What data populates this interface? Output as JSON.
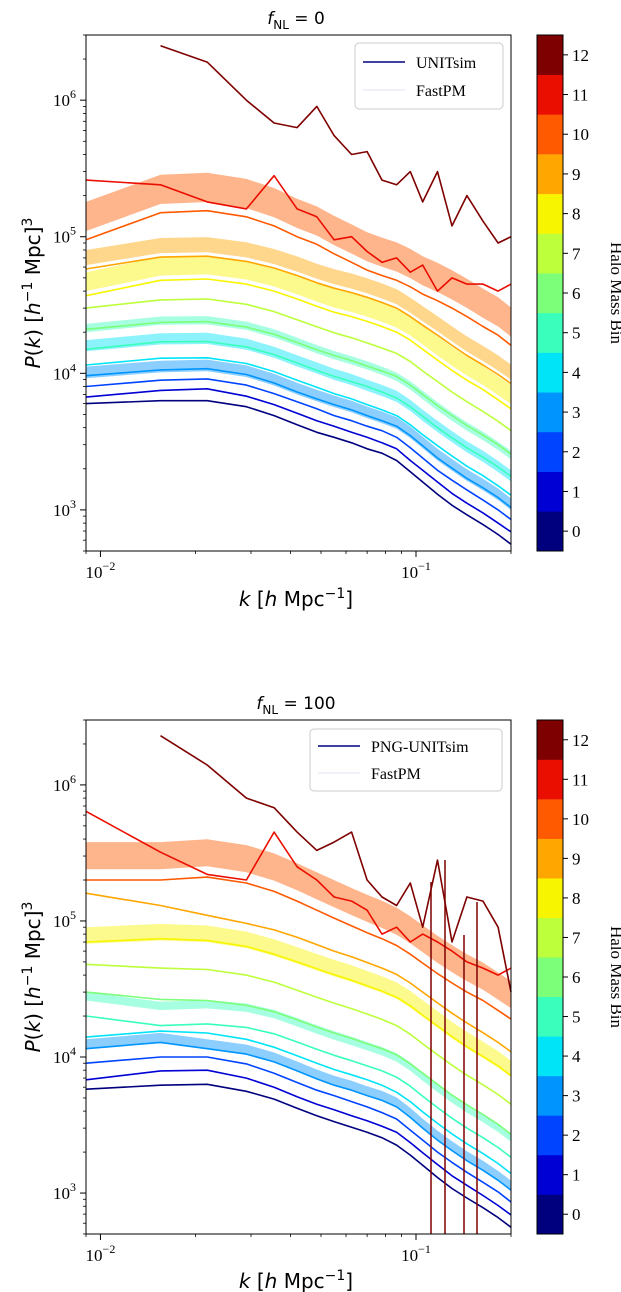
{
  "colorbar": {
    "label": "Halo Mass Bin",
    "ticks": [
      "0",
      "1",
      "2",
      "3",
      "4",
      "5",
      "6",
      "7",
      "8",
      "9",
      "10",
      "11",
      "12"
    ],
    "colors": [
      "#00007f",
      "#0000d4",
      "#0044ff",
      "#0094ff",
      "#00e4f8",
      "#3affbc",
      "#7cff79",
      "#bcff3a",
      "#f8f500",
      "#ffa600",
      "#ff5a00",
      "#ea0e00",
      "#7f0000"
    ]
  },
  "chart_data": [
    {
      "type": "line",
      "title": "f_NL = 0",
      "xlabel": "k [h Mpc^-1]",
      "ylabel": "P(k) [h^-1 Mpc]^3",
      "xscale": "log",
      "yscale": "log",
      "xlim": [
        0.009,
        0.2
      ],
      "ylim": [
        500,
        3000000
      ],
      "xticks": [
        "10^-2",
        "10^-1"
      ],
      "yticks": [
        "10^3",
        "10^4",
        "10^5",
        "10^6"
      ],
      "legend": {
        "position": "top-right",
        "entries": [
          "UNITsim",
          "FastPM"
        ]
      },
      "x": [
        0.009,
        0.0155,
        0.0218,
        0.029,
        0.0355,
        0.042,
        0.0485,
        0.055,
        0.0625,
        0.07,
        0.078,
        0.0868,
        0.0959,
        0.105,
        0.117,
        0.13,
        0.145,
        0.163,
        0.182,
        0.2
      ],
      "series": [
        {
          "bin": 0,
          "values": [
            6000,
            6300,
            6300,
            5700,
            4900,
            4200,
            3700,
            3400,
            3100,
            2800,
            2600,
            2300,
            1900,
            1600,
            1300,
            1080,
            920,
            780,
            660,
            560
          ]
        },
        {
          "bin": 1,
          "values": [
            6700,
            7500,
            7700,
            6800,
            5900,
            5100,
            4500,
            4100,
            3700,
            3400,
            3100,
            2800,
            2300,
            1950,
            1600,
            1320,
            1120,
            950,
            800,
            690
          ]
        },
        {
          "bin": 2,
          "values": [
            8000,
            8900,
            9100,
            8200,
            7100,
            6200,
            5500,
            4900,
            4500,
            4100,
            3800,
            3400,
            2850,
            2400,
            1950,
            1650,
            1400,
            1180,
            1000,
            850
          ]
        },
        {
          "bin": 3,
          "values": [
            9600,
            10600,
            10800,
            9800,
            8500,
            7300,
            6500,
            5900,
            5400,
            4900,
            4500,
            4100,
            3500,
            2950,
            2400,
            2020,
            1700,
            1450,
            1230,
            1040
          ]
        },
        {
          "bin": 4,
          "values": [
            11500,
            12900,
            13000,
            11800,
            10300,
            8900,
            7900,
            7100,
            6500,
            5900,
            5400,
            4900,
            4200,
            3550,
            2950,
            2480,
            2090,
            1780,
            1500,
            1280
          ]
        },
        {
          "bin": 5,
          "values": [
            15000,
            17000,
            17100,
            15600,
            13700,
            11900,
            10500,
            9500,
            8700,
            8000,
            7300,
            6600,
            5700,
            4850,
            4000,
            3370,
            2850,
            2430,
            2060,
            1760
          ]
        },
        {
          "bin": 6,
          "values": [
            21000,
            23600,
            23900,
            21800,
            19300,
            16800,
            14900,
            13500,
            12400,
            11300,
            10400,
            9500,
            8200,
            7000,
            5800,
            4900,
            4150,
            3530,
            3000,
            2560
          ]
        },
        {
          "bin": 7,
          "values": [
            30000,
            34500,
            35000,
            32000,
            28300,
            24700,
            21900,
            19800,
            18200,
            16700,
            15300,
            14000,
            12200,
            10400,
            8700,
            7300,
            6200,
            5250,
            4450,
            3800
          ]
        },
        {
          "bin": 8,
          "values": [
            37000,
            48000,
            49000,
            45000,
            40000,
            35000,
            31000,
            28000,
            26000,
            24000,
            22000,
            20000,
            17500,
            15000,
            12500,
            10500,
            8900,
            7600,
            6400,
            5500
          ]
        },
        {
          "bin": 9,
          "values": [
            58000,
            71000,
            72000,
            66000,
            59000,
            52000,
            46000,
            42000,
            39000,
            36000,
            33000,
            30000,
            26000,
            22500,
            19000,
            16000,
            13500,
            11500,
            9800,
            8400
          ]
        },
        {
          "bin": 10,
          "values": [
            95000,
            150000,
            155000,
            140000,
            120000,
            100000,
            88000,
            75000,
            65000,
            57000,
            52000,
            48000,
            43000,
            38000,
            34000,
            30000,
            26000,
            22000,
            19000,
            16000
          ]
        },
        {
          "bin": 11,
          "values": [
            260000,
            240000,
            180000,
            160000,
            280000,
            160000,
            140000,
            95000,
            100000,
            78000,
            65000,
            70000,
            55000,
            62000,
            40000,
            50000,
            45000,
            45000,
            40000,
            45000
          ]
        },
        {
          "bin": 12,
          "values": [
            null,
            2500000,
            1900000,
            1000000,
            680000,
            630000,
            900000,
            550000,
            400000,
            420000,
            260000,
            240000,
            300000,
            180000,
            300000,
            120000,
            200000,
            130000,
            90000,
            100000
          ]
        }
      ],
      "fastpm_bands": [
        {
          "bin": 3,
          "lo": 9200,
          "hi": 11200
        },
        {
          "bin": 4,
          "lo": 14500,
          "hi": 17500
        },
        {
          "bin": 5,
          "lo": 20000,
          "hi": 23000
        },
        {
          "bin": 8,
          "lo": 40000,
          "hi": 55000
        },
        {
          "bin": 9,
          "lo": 62000,
          "hi": 80000
        },
        {
          "bin": 10,
          "lo": 110000,
          "hi": 180000
        }
      ]
    },
    {
      "type": "line",
      "title": "f_NL = 100",
      "xlabel": "k [h Mpc^-1]",
      "ylabel": "P(k) [h^-1 Mpc]^3",
      "xscale": "log",
      "yscale": "log",
      "xlim": [
        0.009,
        0.2
      ],
      "ylim": [
        500,
        3000000
      ],
      "xticks": [
        "10^-2",
        "10^-1"
      ],
      "yticks": [
        "10^3",
        "10^4",
        "10^5",
        "10^6"
      ],
      "legend": {
        "position": "top-right",
        "entries": [
          "PNG-UNITsim",
          "FastPM"
        ]
      },
      "x": [
        0.009,
        0.0155,
        0.0218,
        0.029,
        0.0355,
        0.042,
        0.0485,
        0.055,
        0.0625,
        0.07,
        0.078,
        0.0868,
        0.0959,
        0.105,
        0.117,
        0.13,
        0.145,
        0.163,
        0.182,
        0.2
      ],
      "series": [
        {
          "bin": 0,
          "values": [
            5800,
            6200,
            6300,
            5600,
            4900,
            4200,
            3700,
            3350,
            3050,
            2800,
            2550,
            2250,
            1900,
            1600,
            1300,
            1080,
            920,
            780,
            660,
            560
          ]
        },
        {
          "bin": 1,
          "values": [
            6800,
            7900,
            8000,
            7000,
            6000,
            5100,
            4500,
            4100,
            3700,
            3400,
            3100,
            2800,
            2350,
            1980,
            1620,
            1340,
            1140,
            960,
            810,
            690
          ]
        },
        {
          "bin": 2,
          "values": [
            9000,
            10000,
            10000,
            8900,
            7600,
            6500,
            5700,
            5200,
            4700,
            4300,
            3900,
            3500,
            2900,
            2450,
            2000,
            1680,
            1420,
            1200,
            1020,
            860
          ]
        },
        {
          "bin": 3,
          "values": [
            11500,
            12800,
            11500,
            10500,
            9200,
            7900,
            6900,
            6200,
            5700,
            5200,
            4800,
            4300,
            3600,
            3000,
            2450,
            2050,
            1730,
            1470,
            1240,
            1050
          ]
        },
        {
          "bin": 4,
          "values": [
            14000,
            15500,
            15000,
            13500,
            11800,
            10200,
            9000,
            8100,
            7400,
            6800,
            6200,
            5500,
            4700,
            3950,
            3250,
            2720,
            2300,
            1950,
            1650,
            1390
          ]
        },
        {
          "bin": 5,
          "values": [
            20000,
            17000,
            17500,
            16500,
            14800,
            12900,
            11400,
            10300,
            9400,
            8600,
            7900,
            7100,
            6100,
            5150,
            4250,
            3550,
            3000,
            2550,
            2160,
            1830
          ]
        },
        {
          "bin": 6,
          "values": [
            30000,
            26500,
            26000,
            24000,
            21500,
            18800,
            16600,
            15000,
            13700,
            12500,
            11500,
            10400,
            8900,
            7600,
            6300,
            5250,
            4450,
            3780,
            3200,
            2700
          ]
        },
        {
          "bin": 7,
          "values": [
            48000,
            45000,
            44000,
            40000,
            35500,
            31000,
            27500,
            24900,
            22700,
            20700,
            18900,
            17000,
            14700,
            12500,
            10400,
            8700,
            7350,
            6250,
            5300,
            4500
          ]
        },
        {
          "bin": 8,
          "values": [
            70000,
            74000,
            72000,
            65000,
            57000,
            50000,
            44500,
            40300,
            36700,
            33400,
            30500,
            27500,
            23800,
            20300,
            16900,
            14100,
            11900,
            10100,
            8600,
            7300
          ]
        },
        {
          "bin": 9,
          "values": [
            160000,
            130000,
            110000,
            96000,
            86000,
            76000,
            67000,
            60000,
            54500,
            49500,
            45000,
            40500,
            35000,
            30000,
            25000,
            21000,
            17800,
            15100,
            12800,
            10900
          ]
        },
        {
          "bin": 10,
          "values": [
            200000,
            200000,
            210000,
            190000,
            165000,
            140000,
            120000,
            105000,
            92000,
            82000,
            74000,
            66000,
            57000,
            49000,
            41000,
            35000,
            30000,
            26000,
            22000,
            19000
          ]
        },
        {
          "bin": 11,
          "values": [
            640000,
            320000,
            220000,
            200000,
            450000,
            250000,
            200000,
            150000,
            140000,
            120000,
            80000,
            90000,
            70000,
            80000,
            70000,
            60000,
            50000,
            45000,
            40000,
            45000
          ]
        },
        {
          "bin": 12,
          "values": [
            null,
            2300000,
            1400000,
            800000,
            680000,
            450000,
            330000,
            380000,
            450000,
            200000,
            150000,
            130000,
            190000,
            90000,
            280000,
            70000,
            150000,
            140000,
            90000,
            30000
          ]
        }
      ],
      "fastpm_bands": [
        {
          "bin": 3,
          "lo": 11500,
          "hi": 13500
        },
        {
          "bin": 5,
          "lo": 26000,
          "hi": 30000
        },
        {
          "bin": 8,
          "lo": 68000,
          "hi": 90000
        },
        {
          "bin": 10,
          "lo": 240000,
          "hi": 380000
        }
      ]
    }
  ]
}
